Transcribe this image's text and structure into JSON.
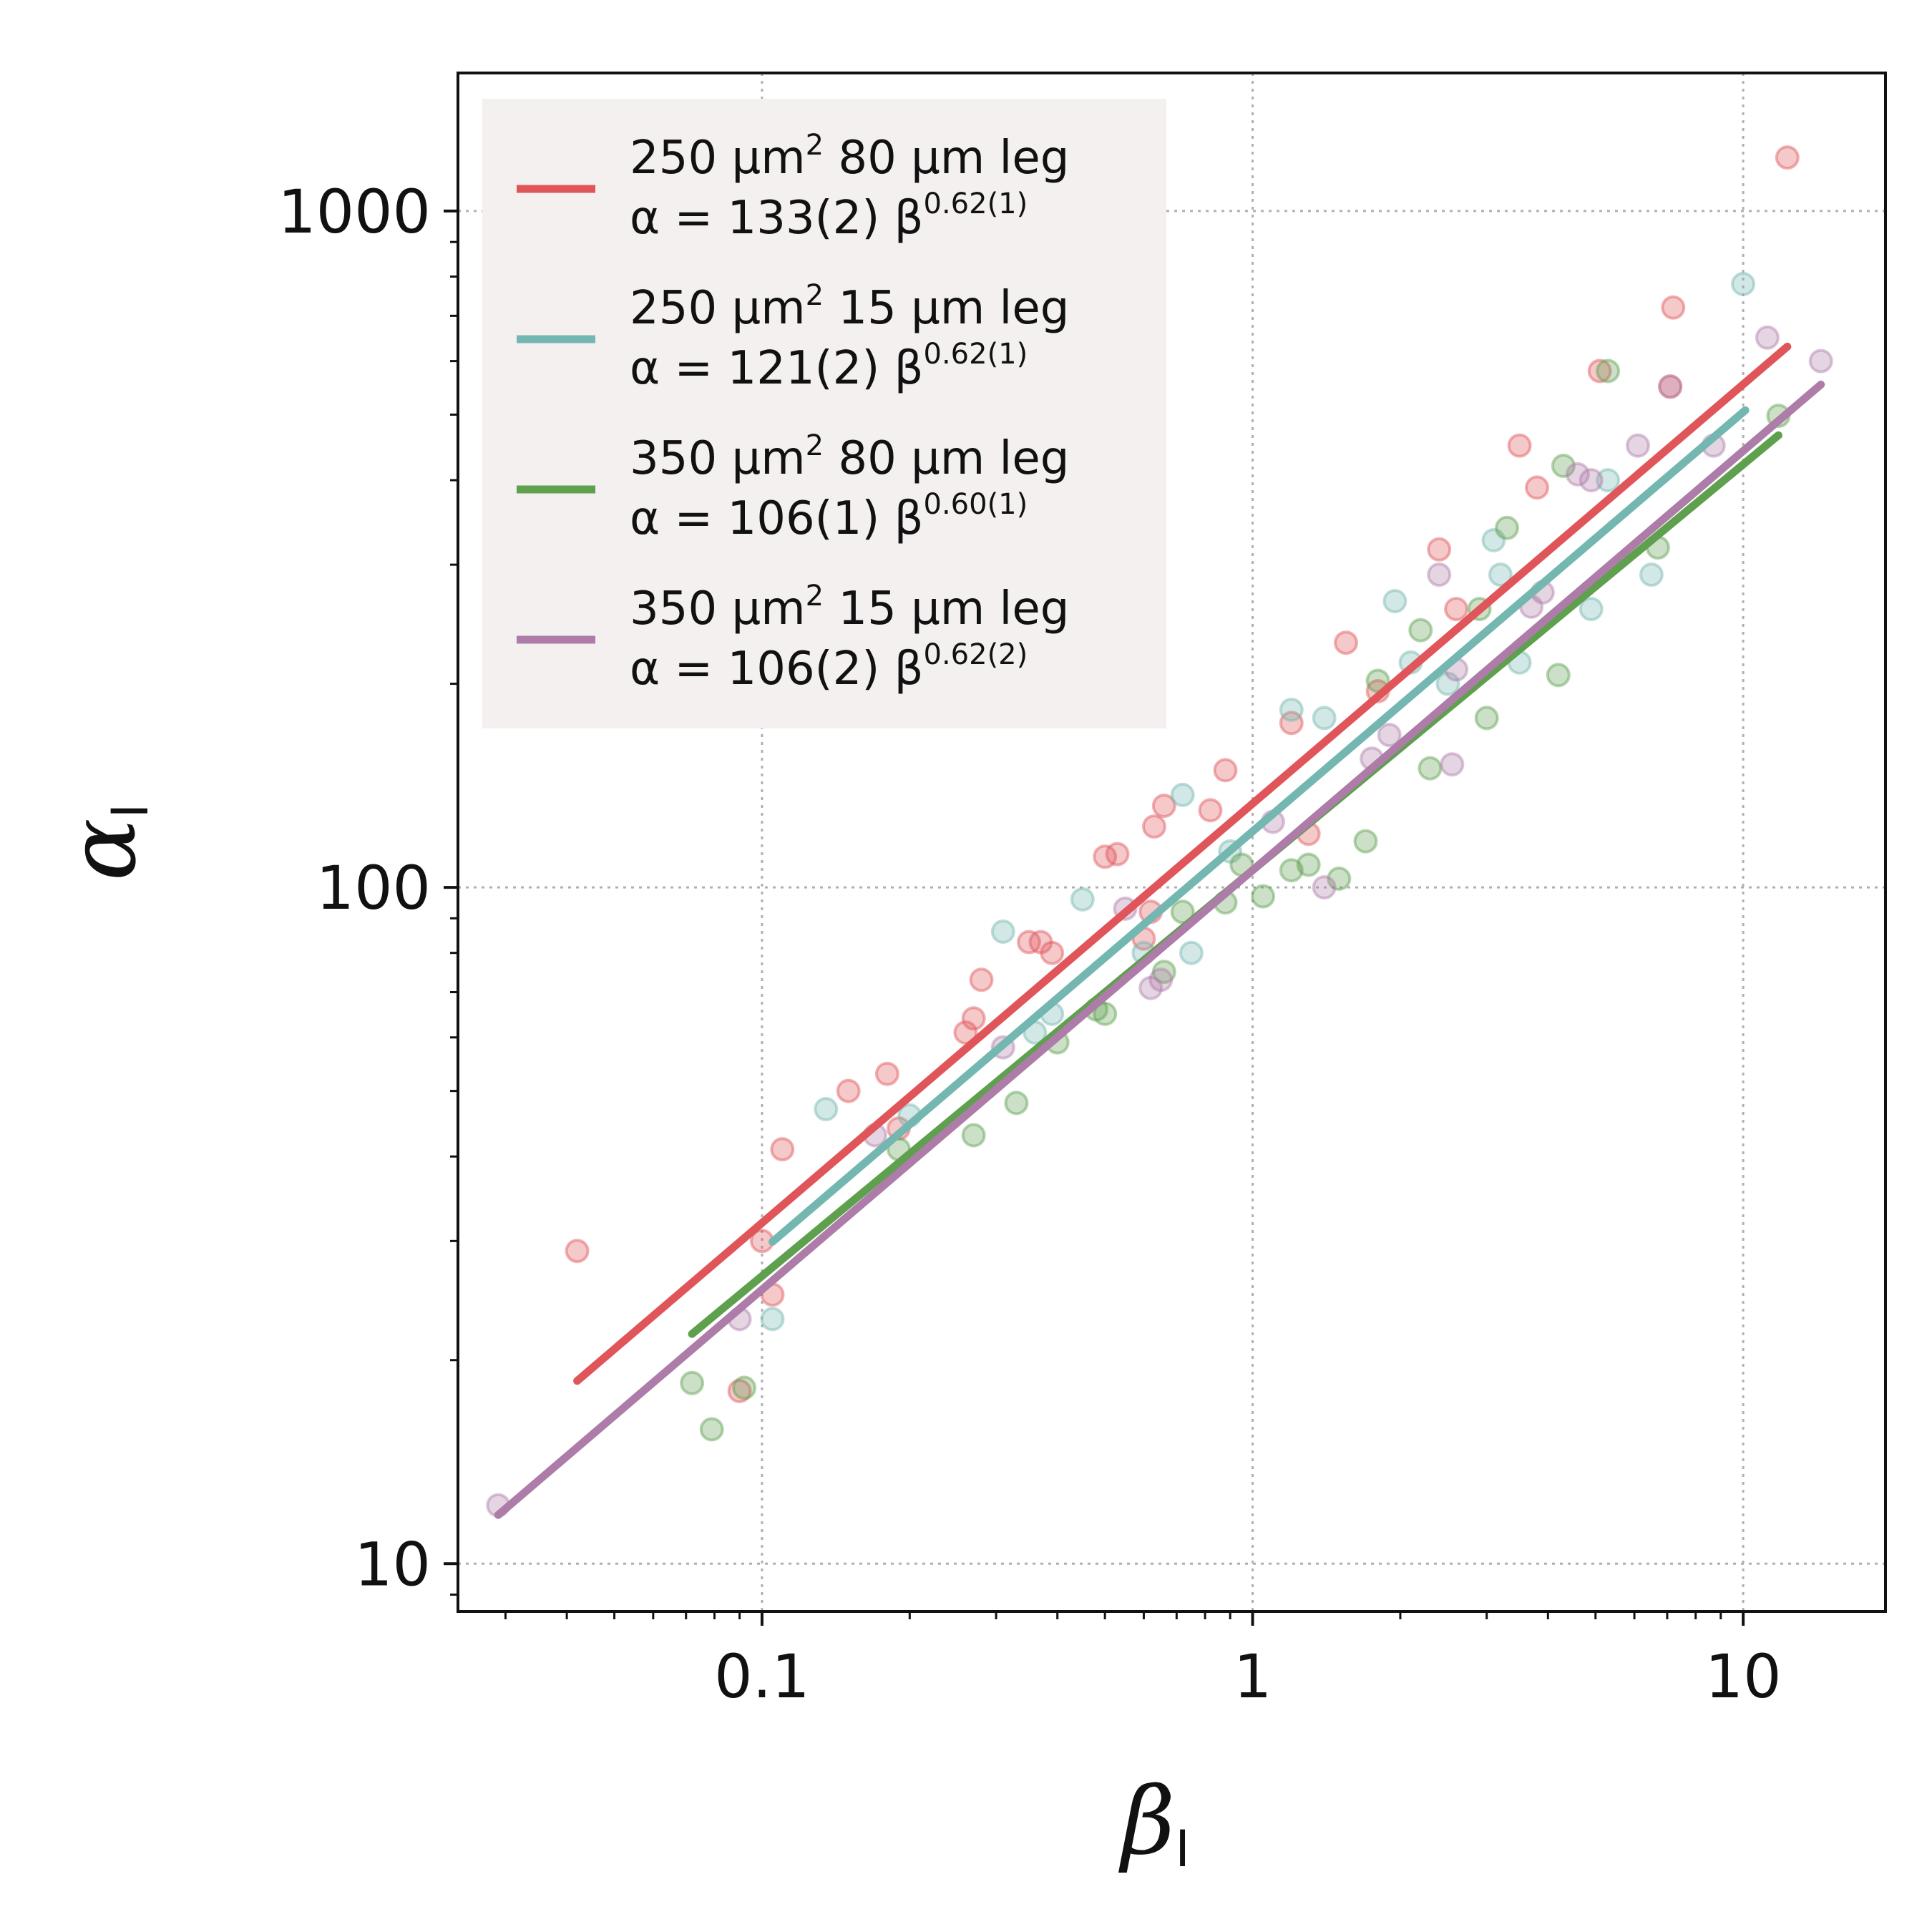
{
  "chart_data": {
    "type": "scatter",
    "title": "",
    "xlabel": "β",
    "xlabel_subscript": "I",
    "ylabel": "α",
    "ylabel_subscript": "I",
    "xscale": "log",
    "yscale": "log",
    "xlim": [
      0.024,
      19.5
    ],
    "ylim": [
      8.5,
      1600
    ],
    "grid": true,
    "legend_position": "top-left",
    "x_ticks": [
      {
        "value": 0.1,
        "label": "0.1"
      },
      {
        "value": 1,
        "label": "1"
      },
      {
        "value": 10,
        "label": "10"
      }
    ],
    "y_ticks": [
      {
        "value": 10,
        "label": "10"
      },
      {
        "value": 100,
        "label": "100"
      },
      {
        "value": 1000,
        "label": "1000"
      }
    ],
    "series": [
      {
        "name": "250 μm² 80 μm leg",
        "label_text": "250 μm",
        "label_sup": "2",
        "label_rest": " 80 μm leg",
        "eq_prefix": "α = 133(2) β",
        "eq_exponent": "0.62(1)",
        "color": "#e05559",
        "fit": {
          "coef": 133,
          "exponent": 0.62,
          "x_range": [
            0.042,
            12.3
          ]
        },
        "points": [
          [
            0.042,
            29
          ],
          [
            0.09,
            18
          ],
          [
            0.1,
            30
          ],
          [
            0.105,
            25
          ],
          [
            0.11,
            41
          ],
          [
            0.15,
            50
          ],
          [
            0.18,
            53
          ],
          [
            0.19,
            44
          ],
          [
            0.26,
            61
          ],
          [
            0.27,
            64
          ],
          [
            0.28,
            73
          ],
          [
            0.35,
            83
          ],
          [
            0.37,
            83
          ],
          [
            0.39,
            80
          ],
          [
            0.5,
            111
          ],
          [
            0.53,
            112
          ],
          [
            0.6,
            84
          ],
          [
            0.62,
            92
          ],
          [
            0.63,
            123
          ],
          [
            0.66,
            132
          ],
          [
            0.82,
            130
          ],
          [
            0.88,
            149
          ],
          [
            1.2,
            175
          ],
          [
            1.3,
            120
          ],
          [
            1.55,
            230
          ],
          [
            1.8,
            195
          ],
          [
            2.4,
            316
          ],
          [
            2.6,
            258
          ],
          [
            3.5,
            450
          ],
          [
            3.8,
            390
          ],
          [
            5.1,
            580
          ],
          [
            7.2,
            720
          ],
          [
            7.1,
            550
          ],
          [
            12.3,
            1200
          ]
        ]
      },
      {
        "name": "250 μm² 15 μm leg",
        "label_text": "250 μm",
        "label_sup": "2",
        "label_rest": " 15 μm leg",
        "eq_prefix": "α = 121(2) β",
        "eq_exponent": "0.62(1)",
        "color": "#74b6b0",
        "fit": {
          "coef": 121,
          "exponent": 0.62,
          "x_range": [
            0.105,
            10.1
          ]
        },
        "points": [
          [
            0.105,
            23
          ],
          [
            0.135,
            47
          ],
          [
            0.2,
            46
          ],
          [
            0.31,
            86
          ],
          [
            0.36,
            61
          ],
          [
            0.39,
            65
          ],
          [
            0.45,
            96
          ],
          [
            0.6,
            80
          ],
          [
            0.72,
            137
          ],
          [
            0.75,
            80
          ],
          [
            0.9,
            113
          ],
          [
            1.2,
            183
          ],
          [
            1.4,
            178
          ],
          [
            1.95,
            265
          ],
          [
            2.1,
            215
          ],
          [
            2.5,
            200
          ],
          [
            3.1,
            326
          ],
          [
            3.2,
            290
          ],
          [
            3.5,
            215
          ],
          [
            4.9,
            258
          ],
          [
            5.3,
            400
          ],
          [
            6.5,
            290
          ],
          [
            10.0,
            780
          ]
        ]
      },
      {
        "name": "350 μm² 80 μm leg",
        "label_text": "350 μm",
        "label_sup": "2",
        "label_rest": " 80 μm leg",
        "eq_prefix": "α = 106(1) β",
        "eq_exponent": "0.60(1)",
        "color": "#5ea04e",
        "fit": {
          "coef": 106,
          "exponent": 0.6,
          "x_range": [
            0.072,
            11.8
          ]
        },
        "points": [
          [
            0.072,
            18.5
          ],
          [
            0.079,
            15.8
          ],
          [
            0.092,
            18.2
          ],
          [
            0.19,
            41
          ],
          [
            0.27,
            43
          ],
          [
            0.33,
            48
          ],
          [
            0.4,
            59
          ],
          [
            0.48,
            66
          ],
          [
            0.5,
            65
          ],
          [
            0.66,
            75
          ],
          [
            0.72,
            92
          ],
          [
            0.88,
            95
          ],
          [
            0.95,
            108
          ],
          [
            1.05,
            97
          ],
          [
            1.2,
            106
          ],
          [
            1.3,
            108
          ],
          [
            1.5,
            103
          ],
          [
            1.7,
            117
          ],
          [
            1.8,
            202
          ],
          [
            2.2,
            240
          ],
          [
            2.3,
            150
          ],
          [
            2.9,
            258
          ],
          [
            3.0,
            178
          ],
          [
            3.3,
            340
          ],
          [
            4.2,
            206
          ],
          [
            4.3,
            420
          ],
          [
            5.3,
            580
          ],
          [
            6.7,
            318
          ],
          [
            11.8,
            498
          ]
        ]
      },
      {
        "name": "350 μm² 15 μm leg",
        "label_text": "350 μm",
        "label_sup": "2",
        "label_rest": " 15 μm leg",
        "eq_prefix": "α = 106(2) β",
        "eq_exponent": "0.62(2)",
        "color": "#ad7ca8",
        "fit": {
          "coef": 106,
          "exponent": 0.62,
          "x_range": [
            0.029,
            14.4
          ]
        },
        "points": [
          [
            0.029,
            12.2
          ],
          [
            0.09,
            23
          ],
          [
            0.17,
            43
          ],
          [
            0.31,
            58
          ],
          [
            0.55,
            93
          ],
          [
            0.62,
            71
          ],
          [
            0.65,
            73
          ],
          [
            1.1,
            125
          ],
          [
            1.4,
            100
          ],
          [
            1.75,
            155
          ],
          [
            1.9,
            168
          ],
          [
            2.4,
            290
          ],
          [
            2.55,
            152
          ],
          [
            2.6,
            210
          ],
          [
            3.7,
            260
          ],
          [
            3.9,
            273
          ],
          [
            4.6,
            408
          ],
          [
            4.9,
            400
          ],
          [
            6.1,
            450
          ],
          [
            7.1,
            550
          ],
          [
            8.7,
            450
          ],
          [
            11.2,
            650
          ],
          [
            14.4,
            600
          ]
        ]
      }
    ]
  }
}
